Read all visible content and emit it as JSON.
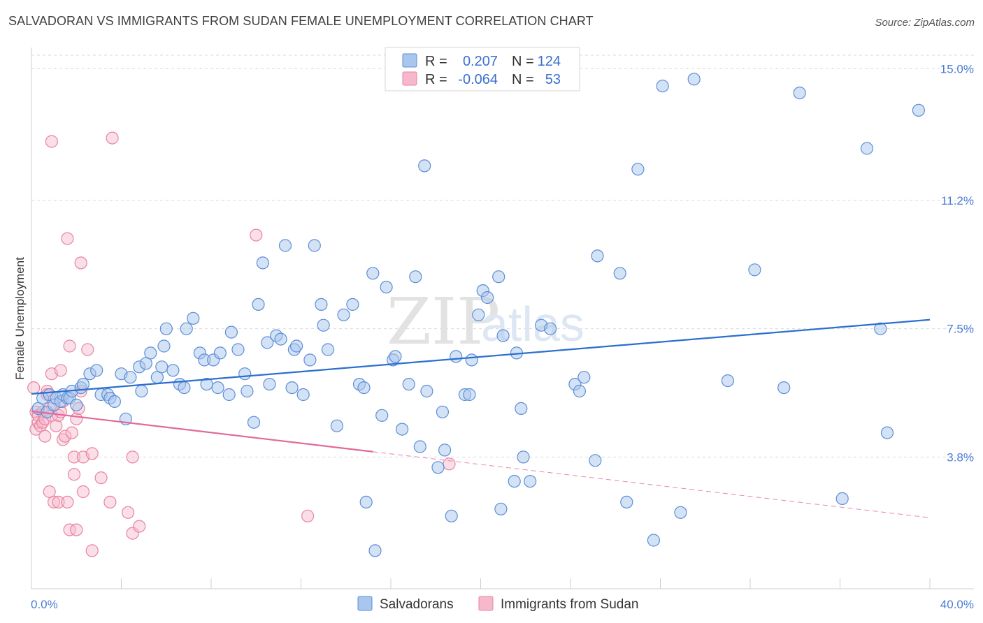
{
  "header": {
    "title": "SALVADORAN VS IMMIGRANTS FROM SUDAN FEMALE UNEMPLOYMENT CORRELATION CHART",
    "source": "Source: ZipAtlas.com"
  },
  "watermark": {
    "zip": "ZIP",
    "atlas": "atlas"
  },
  "legend_box": {
    "rows": [
      {
        "r_label": "R =",
        "r_value": "0.207",
        "n_label": "N =",
        "n_value": "124"
      },
      {
        "r_label": "R =",
        "r_value": "-0.064",
        "n_label": "N =",
        "n_value": "53"
      }
    ]
  },
  "bottom_legend": [
    "Salvadorans",
    "Immigrants from Sudan"
  ],
  "colors": {
    "blue_fill": "#a9c6ee",
    "blue_stroke": "#5b8fd6",
    "blue_line": "#2b6fd0",
    "pink_fill": "#f7b8cc",
    "pink_stroke": "#e8849f",
    "pink_line": "#e0699a",
    "grid": "#d9d9d9",
    "tick_label": "#4a7cd6"
  },
  "chart_data": {
    "type": "scatter",
    "title": "SALVADORAN VS IMMIGRANTS FROM SUDAN FEMALE UNEMPLOYMENT CORRELATION CHART",
    "xlabel": "",
    "ylabel": "Female Unemployment",
    "xlim": [
      0,
      40
    ],
    "ylim": [
      0,
      15.5
    ],
    "x_tick_labels": [
      "0.0%",
      "40.0%"
    ],
    "y_ticks": [
      3.8,
      7.5,
      11.2,
      15.0
    ],
    "y_tick_labels": [
      "3.8%",
      "7.5%",
      "11.2%",
      "15.0%"
    ],
    "grid": true,
    "legend_position": "top-center",
    "series": [
      {
        "name": "Salvadorans",
        "r": 0.207,
        "n": 124,
        "trend": {
          "x": [
            0,
            40
          ],
          "y": [
            5.62,
            7.76
          ],
          "dashed_after": null
        },
        "points": [
          [
            0.3,
            5.2
          ],
          [
            0.5,
            5.5
          ],
          [
            0.7,
            5.1
          ],
          [
            0.8,
            5.6
          ],
          [
            1.0,
            5.3
          ],
          [
            1.1,
            5.5
          ],
          [
            1.3,
            5.4
          ],
          [
            1.4,
            5.6
          ],
          [
            1.6,
            5.5
          ],
          [
            1.7,
            5.5
          ],
          [
            1.8,
            5.7
          ],
          [
            2.0,
            5.3
          ],
          [
            2.2,
            5.8
          ],
          [
            2.3,
            5.9
          ],
          [
            2.6,
            6.2
          ],
          [
            2.9,
            6.3
          ],
          [
            3.1,
            5.6
          ],
          [
            3.4,
            5.6
          ],
          [
            3.5,
            5.5
          ],
          [
            3.7,
            5.4
          ],
          [
            4.0,
            6.2
          ],
          [
            4.2,
            4.9
          ],
          [
            4.4,
            6.1
          ],
          [
            4.8,
            6.4
          ],
          [
            4.9,
            5.7
          ],
          [
            5.1,
            6.5
          ],
          [
            5.3,
            6.8
          ],
          [
            5.6,
            6.1
          ],
          [
            5.8,
            6.4
          ],
          [
            5.9,
            7.0
          ],
          [
            6.0,
            7.5
          ],
          [
            6.3,
            6.3
          ],
          [
            6.6,
            5.9
          ],
          [
            6.8,
            5.8
          ],
          [
            6.9,
            7.5
          ],
          [
            7.2,
            7.8
          ],
          [
            7.5,
            6.8
          ],
          [
            7.7,
            6.6
          ],
          [
            7.8,
            5.9
          ],
          [
            8.1,
            6.6
          ],
          [
            8.3,
            5.8
          ],
          [
            8.4,
            6.8
          ],
          [
            8.8,
            5.6
          ],
          [
            8.9,
            7.4
          ],
          [
            9.2,
            6.9
          ],
          [
            9.5,
            6.2
          ],
          [
            9.6,
            5.7
          ],
          [
            9.9,
            4.8
          ],
          [
            10.1,
            8.2
          ],
          [
            10.3,
            9.4
          ],
          [
            10.5,
            7.1
          ],
          [
            10.6,
            5.9
          ],
          [
            10.9,
            7.3
          ],
          [
            11.1,
            7.2
          ],
          [
            11.3,
            9.9
          ],
          [
            11.6,
            5.8
          ],
          [
            11.7,
            6.9
          ],
          [
            11.8,
            7.0
          ],
          [
            12.1,
            5.6
          ],
          [
            12.4,
            6.6
          ],
          [
            12.6,
            9.9
          ],
          [
            12.9,
            8.2
          ],
          [
            13.0,
            7.6
          ],
          [
            13.2,
            6.9
          ],
          [
            13.6,
            4.7
          ],
          [
            13.9,
            7.9
          ],
          [
            14.3,
            8.2
          ],
          [
            14.6,
            5.9
          ],
          [
            14.8,
            5.8
          ],
          [
            14.9,
            2.5
          ],
          [
            15.2,
            9.1
          ],
          [
            15.3,
            1.1
          ],
          [
            15.6,
            5.0
          ],
          [
            15.8,
            8.7
          ],
          [
            16.1,
            6.6
          ],
          [
            16.2,
            6.7
          ],
          [
            16.5,
            4.6
          ],
          [
            16.8,
            5.9
          ],
          [
            17.1,
            9.0
          ],
          [
            17.3,
            4.1
          ],
          [
            17.5,
            12.2
          ],
          [
            17.6,
            5.7
          ],
          [
            18.1,
            3.5
          ],
          [
            18.3,
            5.1
          ],
          [
            18.4,
            4.0
          ],
          [
            18.7,
            2.1
          ],
          [
            18.9,
            6.7
          ],
          [
            19.3,
            5.6
          ],
          [
            19.5,
            5.6
          ],
          [
            19.6,
            6.6
          ],
          [
            19.9,
            7.9
          ],
          [
            20.1,
            8.6
          ],
          [
            20.3,
            8.4
          ],
          [
            20.8,
            9.0
          ],
          [
            20.9,
            2.3
          ],
          [
            21.0,
            7.3
          ],
          [
            21.5,
            3.1
          ],
          [
            21.6,
            6.8
          ],
          [
            21.8,
            5.2
          ],
          [
            21.9,
            3.8
          ],
          [
            22.2,
            3.1
          ],
          [
            22.7,
            7.6
          ],
          [
            23.1,
            7.5
          ],
          [
            24.2,
            5.9
          ],
          [
            24.4,
            5.7
          ],
          [
            24.6,
            6.1
          ],
          [
            25.1,
            3.7
          ],
          [
            25.2,
            9.6
          ],
          [
            26.2,
            9.1
          ],
          [
            26.5,
            2.5
          ],
          [
            27.0,
            12.1
          ],
          [
            27.7,
            1.4
          ],
          [
            28.1,
            14.5
          ],
          [
            28.9,
            2.2
          ],
          [
            29.5,
            14.7
          ],
          [
            31.0,
            6.0
          ],
          [
            32.2,
            9.2
          ],
          [
            33.5,
            5.8
          ],
          [
            34.2,
            14.3
          ],
          [
            36.1,
            2.6
          ],
          [
            37.2,
            12.7
          ],
          [
            37.8,
            7.5
          ],
          [
            38.1,
            4.5
          ],
          [
            39.5,
            13.8
          ]
        ]
      },
      {
        "name": "Immigrants from Sudan",
        "r": -0.064,
        "n": 53,
        "trend": {
          "x": [
            0,
            40
          ],
          "y": [
            5.12,
            2.05
          ],
          "solid_until": 15.2
        },
        "points": [
          [
            0.1,
            5.8
          ],
          [
            0.2,
            4.6
          ],
          [
            0.2,
            5.1
          ],
          [
            0.3,
            4.8
          ],
          [
            0.3,
            5.0
          ],
          [
            0.4,
            4.7
          ],
          [
            0.5,
            4.8
          ],
          [
            0.5,
            5.1
          ],
          [
            0.6,
            4.9
          ],
          [
            0.6,
            4.4
          ],
          [
            0.7,
            5.7
          ],
          [
            0.7,
            5.6
          ],
          [
            0.8,
            5.2
          ],
          [
            0.8,
            2.8
          ],
          [
            0.9,
            5.0
          ],
          [
            0.9,
            12.9
          ],
          [
            0.9,
            6.2
          ],
          [
            1.0,
            2.5
          ],
          [
            1.1,
            4.7
          ],
          [
            1.2,
            5.0
          ],
          [
            1.2,
            2.5
          ],
          [
            1.3,
            5.1
          ],
          [
            1.3,
            6.3
          ],
          [
            1.4,
            4.3
          ],
          [
            1.4,
            5.4
          ],
          [
            1.5,
            4.4
          ],
          [
            1.6,
            10.1
          ],
          [
            1.6,
            2.5
          ],
          [
            1.7,
            7.0
          ],
          [
            1.7,
            1.7
          ],
          [
            1.8,
            4.5
          ],
          [
            1.9,
            3.3
          ],
          [
            1.9,
            3.8
          ],
          [
            2.0,
            4.9
          ],
          [
            2.0,
            1.7
          ],
          [
            2.1,
            5.2
          ],
          [
            2.2,
            5.7
          ],
          [
            2.2,
            9.4
          ],
          [
            2.3,
            2.8
          ],
          [
            2.3,
            3.8
          ],
          [
            2.5,
            6.9
          ],
          [
            2.7,
            3.9
          ],
          [
            2.7,
            1.1
          ],
          [
            3.1,
            3.2
          ],
          [
            3.5,
            2.5
          ],
          [
            3.6,
            13.0
          ],
          [
            4.3,
            2.2
          ],
          [
            4.5,
            3.8
          ],
          [
            4.5,
            1.6
          ],
          [
            4.8,
            1.8
          ],
          [
            10.0,
            10.2
          ],
          [
            12.3,
            2.1
          ],
          [
            18.6,
            3.6
          ]
        ]
      }
    ]
  }
}
